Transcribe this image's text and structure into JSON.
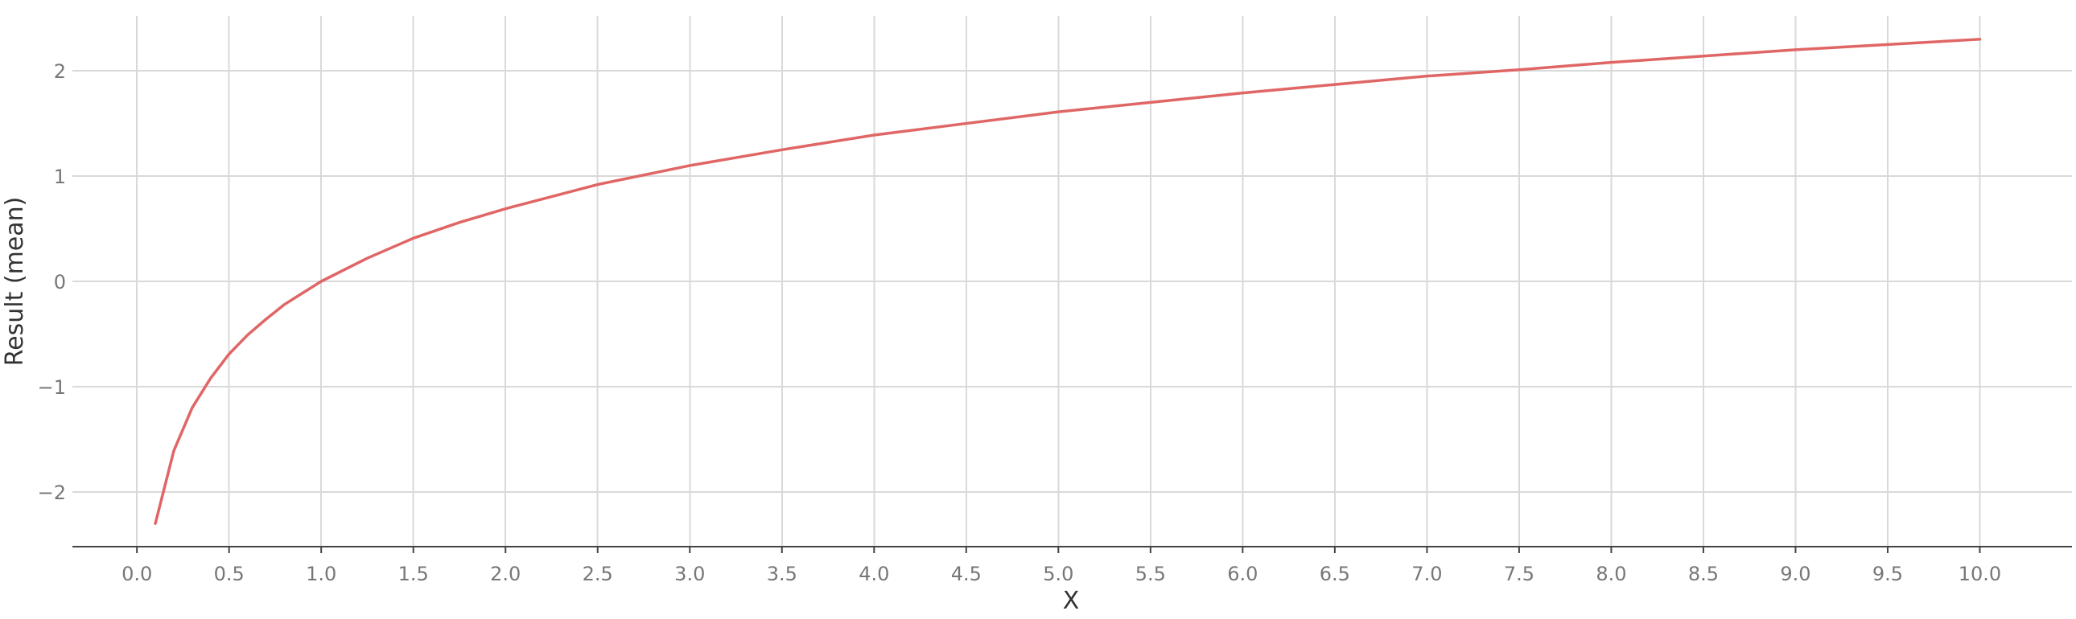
{
  "chart_data": {
    "type": "line",
    "title": "",
    "xlabel": "X",
    "ylabel": "Result (mean)",
    "xlim": [
      -0.35,
      10.5
    ],
    "ylim": [
      -2.52,
      2.52
    ],
    "x_ticks": [
      "0.0",
      "0.5",
      "1.0",
      "1.5",
      "2.0",
      "2.5",
      "3.0",
      "3.5",
      "4.0",
      "4.5",
      "5.0",
      "5.5",
      "6.0",
      "6.5",
      "7.0",
      "7.5",
      "8.0",
      "8.5",
      "9.0",
      "9.5",
      "10.0"
    ],
    "y_ticks": [
      "2",
      "1",
      "0",
      "−1",
      "−2"
    ],
    "grid": true,
    "legend": "none",
    "colors": {
      "series": "#e06666",
      "grid": "#d9d9d9",
      "axis": "#444444",
      "tick_text": "#777777",
      "axis_title": "#333333"
    },
    "series": [
      {
        "color": "#e06666",
        "x": [
          0.1,
          0.2,
          0.3,
          0.4,
          0.5,
          0.6,
          0.7,
          0.8,
          0.9,
          1.0,
          1.25,
          1.5,
          1.75,
          2.0,
          2.5,
          3.0,
          3.5,
          4.0,
          4.5,
          5.0,
          5.5,
          6.0,
          6.5,
          7.0,
          7.5,
          8.0,
          8.5,
          9.0,
          9.5,
          10.0
        ],
        "y": [
          -2.3,
          -1.61,
          -1.2,
          -0.92,
          -0.69,
          -0.51,
          -0.36,
          -0.22,
          -0.11,
          0.0,
          0.22,
          0.41,
          0.56,
          0.69,
          0.92,
          1.1,
          1.25,
          1.39,
          1.5,
          1.61,
          1.7,
          1.79,
          1.87,
          1.95,
          2.01,
          2.08,
          2.14,
          2.2,
          2.25,
          2.3
        ]
      }
    ]
  }
}
